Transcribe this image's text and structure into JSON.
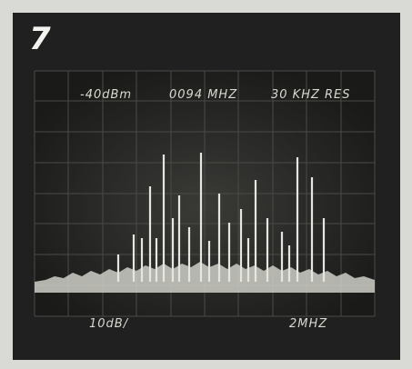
{
  "panel_number": "7",
  "screen": {
    "reference_level": "-40dBm",
    "center_frequency": "0094 MHZ",
    "resolution": "30 KHZ RES",
    "vertical_scale": "10dB/",
    "horizontal_scale": "2MHZ"
  }
}
